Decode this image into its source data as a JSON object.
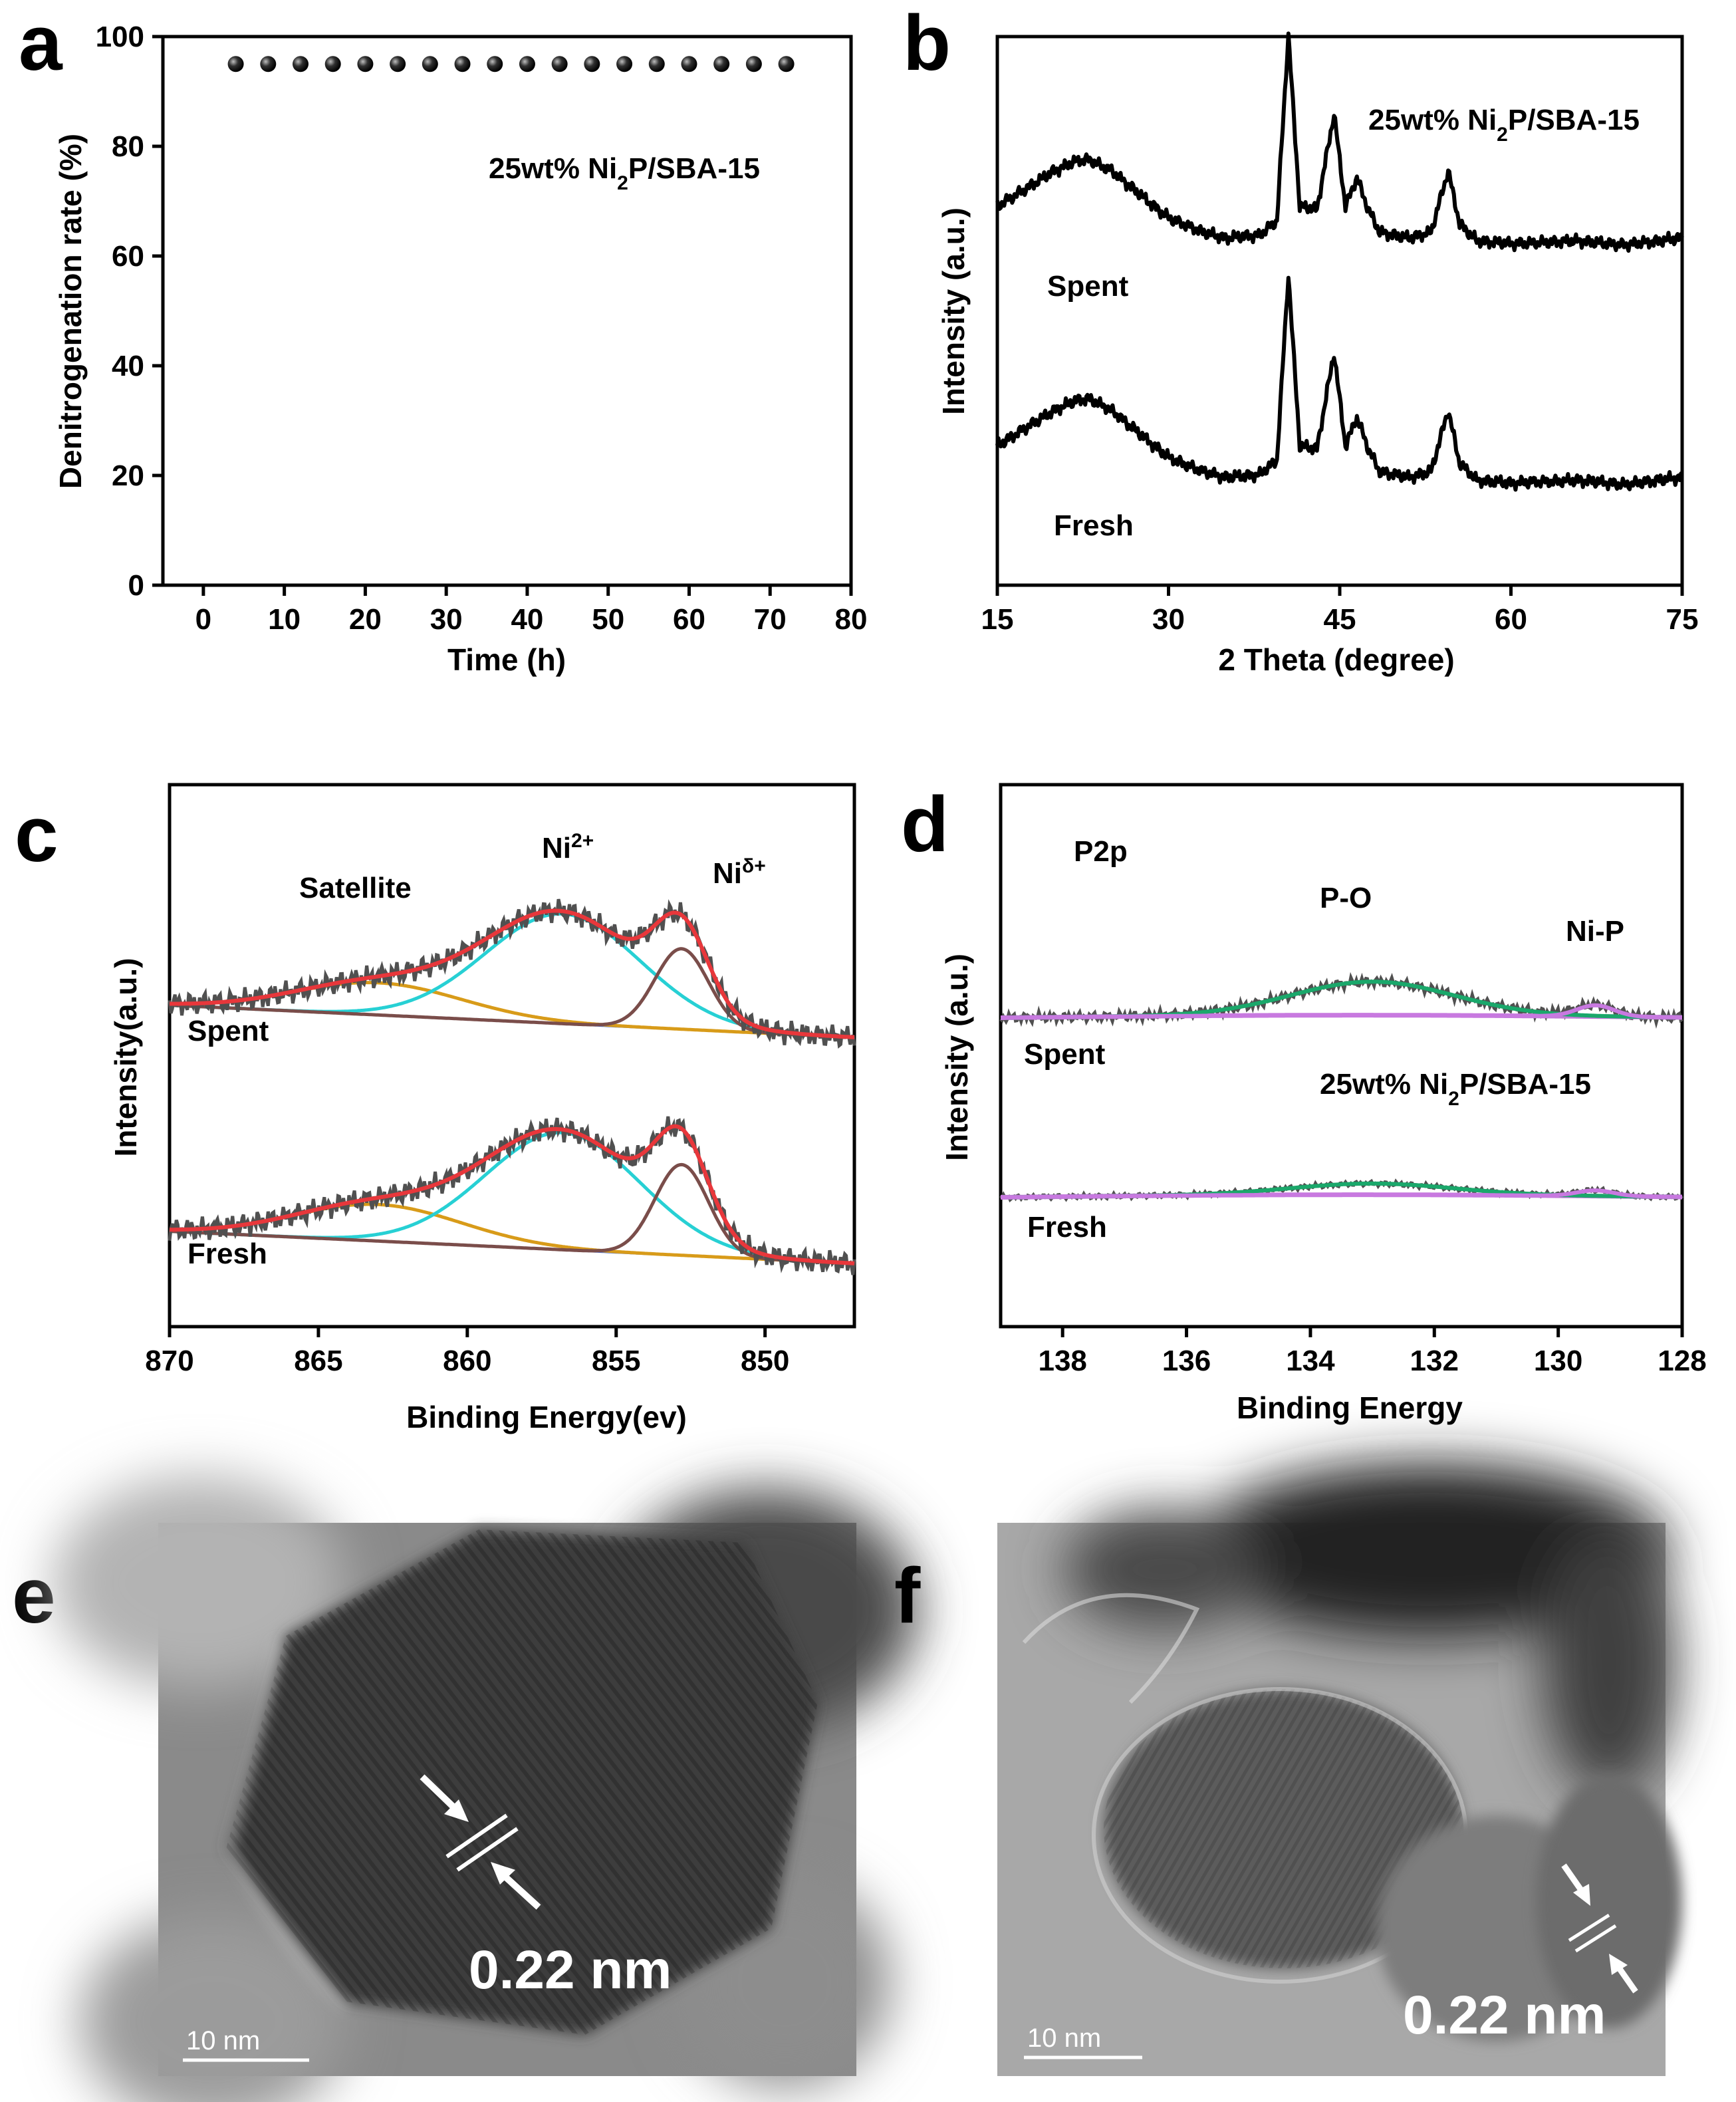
{
  "chart_data": [
    {
      "id": "a",
      "panel_label": "a",
      "type": "scatter",
      "xlabel": "Time (h)",
      "ylabel": "Denitrogenation rate (%)",
      "xlim": [
        -5,
        80
      ],
      "ylim": [
        0,
        100
      ],
      "xticks": [
        0,
        10,
        20,
        30,
        40,
        50,
        60,
        70,
        80
      ],
      "yticks": [
        0,
        20,
        40,
        60,
        80,
        100
      ],
      "annotation": "25wt% Ni2P/SBA-15",
      "series": [
        {
          "name": "25wt% Ni2P/SBA-15",
          "x": [
            4,
            8,
            12,
            16,
            20,
            24,
            28,
            32,
            36,
            40,
            44,
            48,
            52,
            56,
            60,
            64,
            68,
            72
          ],
          "y": [
            95,
            95,
            95,
            95,
            95,
            95,
            95,
            95,
            95,
            95,
            95,
            95,
            95,
            95,
            95,
            95,
            95,
            95
          ]
        }
      ]
    },
    {
      "id": "b",
      "panel_label": "b",
      "type": "line",
      "xlabel": "2 Theta (degree)",
      "ylabel": "Intensity (a.u.)",
      "xlim": [
        15,
        75
      ],
      "xticks": [
        15,
        30,
        45,
        60,
        75
      ],
      "annotation": "25wt% Ni2P/SBA-15",
      "series": [
        {
          "name": "Spent",
          "offset": 1.0,
          "x": [
            15,
            18,
            20,
            22,
            23,
            25,
            28,
            30,
            33,
            35,
            38,
            39.5,
            40.5,
            41.5,
            43,
            44.5,
            45.5,
            46.5,
            47.5,
            48.5,
            51,
            53,
            54.5,
            55.5,
            57,
            60,
            63,
            66,
            70,
            75
          ],
          "y": [
            0.3,
            0.45,
            0.55,
            0.62,
            0.63,
            0.55,
            0.35,
            0.22,
            0.12,
            0.08,
            0.1,
            0.2,
            1.5,
            0.3,
            0.28,
            0.95,
            0.3,
            0.5,
            0.28,
            0.12,
            0.08,
            0.12,
            0.55,
            0.18,
            0.06,
            0.04,
            0.05,
            0.06,
            0.03,
            0.08
          ]
        },
        {
          "name": "Fresh",
          "offset": 0.0,
          "x": [
            15,
            18,
            20,
            22,
            23,
            25,
            28,
            30,
            33,
            35,
            38,
            39.5,
            40.5,
            41.5,
            43,
            44.5,
            45.5,
            46.5,
            47.5,
            48.5,
            51,
            53,
            54.5,
            55.5,
            57,
            60,
            63,
            66,
            70,
            75
          ],
          "y": [
            0.3,
            0.45,
            0.55,
            0.62,
            0.63,
            0.55,
            0.35,
            0.22,
            0.12,
            0.08,
            0.1,
            0.2,
            1.5,
            0.3,
            0.28,
            0.95,
            0.3,
            0.5,
            0.28,
            0.12,
            0.08,
            0.12,
            0.55,
            0.18,
            0.06,
            0.04,
            0.05,
            0.06,
            0.03,
            0.08
          ]
        }
      ]
    },
    {
      "id": "c",
      "panel_label": "c",
      "type": "line",
      "xlabel": "Binding Energy(ev)",
      "ylabel": "Intensity(a.u.)",
      "xlim": [
        870,
        847
      ],
      "xticks": [
        870,
        865,
        860,
        855,
        850
      ],
      "annotations": [
        "Satellite",
        "Ni2+",
        "Niδ+"
      ],
      "series": [
        {
          "name": "Spent",
          "offset": 1.0,
          "baseline": [
            0.22,
            0.0
          ],
          "peaks": [
            {
              "label": "Satellite",
              "center": 863.0,
              "height": 0.22,
              "width": 2.8,
              "color": "#d89b19"
            },
            {
              "label": "Ni2+",
              "center": 856.8,
              "height": 0.75,
              "width": 2.6,
              "color": "#27d0d4"
            },
            {
              "label": "Niδ+",
              "center": 852.8,
              "height": 0.55,
              "width": 0.9,
              "color": "#7a4d4a"
            }
          ]
        },
        {
          "name": "Fresh",
          "offset": 0.0,
          "baseline": [
            0.22,
            0.0
          ],
          "peaks": [
            {
              "label": "Satellite",
              "center": 863.0,
              "height": 0.25,
              "width": 2.8,
              "color": "#d89b19"
            },
            {
              "label": "Ni2+",
              "center": 856.8,
              "height": 0.8,
              "width": 2.6,
              "color": "#27d0d4"
            },
            {
              "label": "Niδ+",
              "center": 852.8,
              "height": 0.62,
              "width": 0.9,
              "color": "#7a4d4a"
            }
          ]
        }
      ]
    },
    {
      "id": "d",
      "panel_label": "d",
      "type": "line",
      "xlabel": "Binding Energy",
      "ylabel": "Intensity (a.u.)",
      "xlim": [
        139,
        128
      ],
      "xticks": [
        138,
        136,
        134,
        132,
        130,
        128
      ],
      "annotations": [
        "P2p",
        "P-O",
        "Ni-P",
        "25wt% Ni2P/SBA-15"
      ],
      "series": [
        {
          "name": "Spent",
          "offset": 1.0,
          "peaks": [
            {
              "label": "P-O",
              "center": 133.0,
              "height": 0.18,
              "width": 1.3,
              "color": "#1aa86b"
            },
            {
              "label": "Ni-P",
              "center": 129.4,
              "height": 0.06,
              "width": 0.3,
              "color": "#c879e0"
            }
          ]
        },
        {
          "name": "Fresh",
          "offset": 0.0,
          "peaks": [
            {
              "label": "P-O",
              "center": 133.0,
              "height": 0.06,
              "width": 1.3,
              "color": "#1aa86b"
            },
            {
              "label": "Ni-P",
              "center": 129.4,
              "height": 0.03,
              "width": 0.3,
              "color": "#c879e0"
            }
          ]
        }
      ]
    }
  ],
  "tem": [
    {
      "panel_label": "e",
      "spacing_label": "0.22 nm",
      "scale_label": "10 nm"
    },
    {
      "panel_label": "f",
      "spacing_label": "0.22 nm",
      "scale_label": "10 nm"
    }
  ],
  "colors": {
    "envelope": "#e8373b",
    "raw": "#505050",
    "baseline_c": "#4a6fd6",
    "baseline_d": "#c27ad8"
  }
}
